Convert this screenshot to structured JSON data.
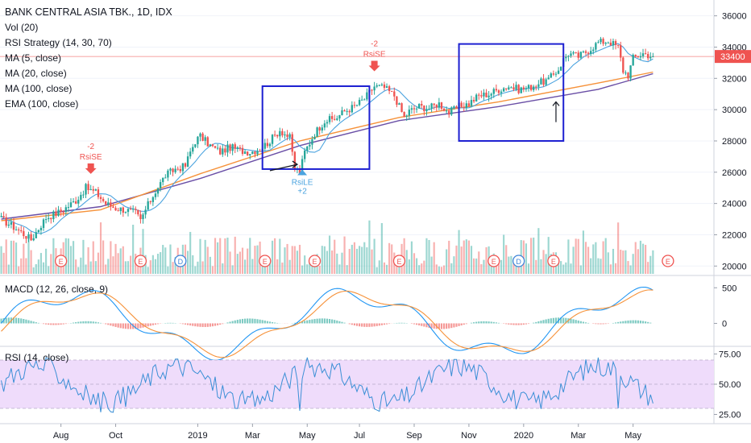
{
  "chart_data": {
    "type": "candlestick",
    "title": "BANK CENTRAL ASIA TBK., 1D, IDX",
    "indicators": [
      "Vol (20)",
      "RSI Strategy (14, 30, 70)",
      "MA (5, close)",
      "MA (20, close)",
      "MA (100, close)",
      "EMA (100, close)"
    ],
    "last_price": "33400",
    "price_axis": {
      "ylim": [
        19500,
        36600
      ],
      "ticks": [
        "36000",
        "34000",
        "32000",
        "30000",
        "28000",
        "26000",
        "24000",
        "22000",
        "20000"
      ]
    },
    "x_ticks": [
      "Aug",
      "Oct",
      "2019",
      "Mar",
      "May",
      "Jul",
      "Sep",
      "Nov",
      "2020",
      "Mar",
      "May"
    ],
    "close_path": [
      [
        0,
        23000
      ],
      [
        6,
        22400
      ],
      [
        12,
        21700
      ],
      [
        18,
        23100
      ],
      [
        24,
        23500
      ],
      [
        30,
        24200
      ],
      [
        34,
        25000
      ],
      [
        38,
        24700
      ],
      [
        42,
        24000
      ],
      [
        46,
        23700
      ],
      [
        50,
        23600
      ],
      [
        54,
        23400
      ],
      [
        56,
        22900
      ],
      [
        58,
        23600
      ],
      [
        62,
        24800
      ],
      [
        66,
        25800
      ],
      [
        70,
        26200
      ],
      [
        74,
        26400
      ],
      [
        76,
        27300
      ],
      [
        78,
        28000
      ],
      [
        80,
        28300
      ],
      [
        84,
        27700
      ],
      [
        88,
        27300
      ],
      [
        92,
        27600
      ],
      [
        96,
        27400
      ],
      [
        100,
        27300
      ],
      [
        104,
        27500
      ],
      [
        108,
        28000
      ],
      [
        112,
        28700
      ],
      [
        116,
        28200
      ],
      [
        118,
        26200
      ],
      [
        120,
        26000
      ],
      [
        122,
        27300
      ],
      [
        126,
        28500
      ],
      [
        130,
        29300
      ],
      [
        134,
        29400
      ],
      [
        138,
        29900
      ],
      [
        142,
        30200
      ],
      [
        146,
        30700
      ],
      [
        150,
        31500
      ],
      [
        154,
        31400
      ],
      [
        158,
        30900
      ],
      [
        160,
        30200
      ],
      [
        162,
        29500
      ],
      [
        164,
        29900
      ],
      [
        168,
        30200
      ],
      [
        172,
        30100
      ],
      [
        176,
        30400
      ],
      [
        180,
        29800
      ],
      [
        184,
        30200
      ],
      [
        188,
        30400
      ],
      [
        192,
        30900
      ],
      [
        196,
        31000
      ],
      [
        200,
        31300
      ],
      [
        204,
        31500
      ],
      [
        208,
        31300
      ],
      [
        212,
        31400
      ],
      [
        216,
        31700
      ],
      [
        220,
        31900
      ],
      [
        224,
        32600
      ],
      [
        226,
        33200
      ],
      [
        228,
        33600
      ],
      [
        232,
        33400
      ],
      [
        236,
        33800
      ],
      [
        240,
        34300
      ],
      [
        244,
        34400
      ],
      [
        248,
        34000
      ],
      [
        250,
        32500
      ],
      [
        252,
        32200
      ],
      [
        254,
        33300
      ],
      [
        258,
        33600
      ],
      [
        262,
        33400
      ]
    ],
    "series": [
      {
        "name": "MA (100, close)",
        "points": [
          [
            0,
            23000
          ],
          [
            40,
            23800
          ],
          [
            80,
            25600
          ],
          [
            120,
            27700
          ],
          [
            160,
            29300
          ],
          [
            200,
            30200
          ],
          [
            240,
            31300
          ],
          [
            262,
            32300
          ]
        ]
      },
      {
        "name": "EMA (100, close)",
        "points": [
          [
            0,
            22900
          ],
          [
            40,
            23600
          ],
          [
            80,
            25900
          ],
          [
            120,
            28000
          ],
          [
            160,
            29500
          ],
          [
            200,
            30500
          ],
          [
            240,
            31700
          ],
          [
            262,
            32400
          ]
        ]
      }
    ],
    "signals": [
      {
        "label": "RsiSE",
        "value": "-2",
        "i": 36
      },
      {
        "label": "RsiSE",
        "value": "-2",
        "i": 150
      },
      {
        "label": "RsiLE",
        "value": "+2",
        "i": 121
      }
    ],
    "event_markers": [
      {
        "i": 24,
        "label": "E"
      },
      {
        "i": 56,
        "label": "E"
      },
      {
        "i": 72,
        "label": "D"
      },
      {
        "i": 106,
        "label": "E"
      },
      {
        "i": 126,
        "label": "E"
      },
      {
        "i": 160,
        "label": "E"
      },
      {
        "i": 198,
        "label": "E"
      },
      {
        "i": 208,
        "label": "D"
      },
      {
        "i": 222,
        "label": "E"
      },
      {
        "i": 268,
        "label": "E"
      }
    ],
    "macd": {
      "label": "MACD (12, 26, close, 9)",
      "ticks": [
        "500",
        "0"
      ],
      "ylim": [
        -300,
        650
      ]
    },
    "rsi": {
      "label": "RSI (14, close)",
      "ticks": [
        "75.00",
        "50.00",
        "25.00"
      ],
      "ylim": [
        20,
        80
      ],
      "band": [
        30,
        70
      ]
    }
  },
  "colors": {
    "up": "#26a69a",
    "down": "#ef5350",
    "ma20": "#4aa3df",
    "ma100": "#6a4fa6",
    "ema100": "#f6923a",
    "ma5_red": "#e35d5d",
    "annotation_box": "#1c1fd1",
    "rsi_line": "#3b8fd6",
    "rsi_band": "#efdcfb",
    "price_label": "#ef5350"
  }
}
